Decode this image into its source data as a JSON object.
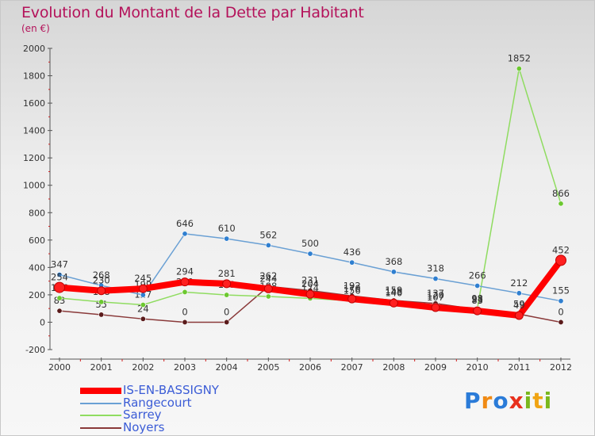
{
  "title": "Evolution du Montant de la Dette par Habitant",
  "subtitle": "(en €)",
  "logo": {
    "letters": [
      {
        "char": "P",
        "color": "#2a7bd8"
      },
      {
        "char": "r",
        "color": "#f08a14"
      },
      {
        "char": "o",
        "color": "#2a7bd8"
      },
      {
        "char": "x",
        "color": "#e8301c"
      },
      {
        "char": "i",
        "color": "#7ab81e"
      },
      {
        "char": "t",
        "color": "#f0a414"
      },
      {
        "char": "i",
        "color": "#7ab81e"
      }
    ]
  },
  "chart_data": {
    "type": "line",
    "title": "Evolution du Montant de la Dette par Habitant",
    "subtitle": "(en €)",
    "x": [
      2000,
      2001,
      2002,
      2003,
      2004,
      2005,
      2006,
      2007,
      2008,
      2009,
      2010,
      2011,
      2012
    ],
    "ylim": [
      -200,
      2000
    ],
    "yticks": [
      -200,
      0,
      200,
      400,
      600,
      800,
      1000,
      1200,
      1400,
      1600,
      1800,
      2000
    ],
    "grid": false,
    "legend_position": "bottom-left",
    "series": [
      {
        "name": "IS-EN-BASSIGNY",
        "color": "#ff0000",
        "marker_color": "#e01010",
        "width": 8,
        "values": [
          254,
          230,
          245,
          294,
          281,
          244,
          204,
          170,
          140,
          107,
          83,
          49,
          452
        ],
        "labels": [
          "254",
          "230",
          "245",
          "294",
          "281",
          "244",
          "204",
          "170",
          "140",
          "107",
          "83",
          "49",
          "452"
        ]
      },
      {
        "name": "Rangecourt",
        "color": "#6aa0d4",
        "marker_color": "#2f7fd0",
        "width": 1.5,
        "values": [
          347,
          268,
          199,
          646,
          610,
          562,
          500,
          436,
          368,
          318,
          266,
          212,
          155
        ],
        "labels": [
          "347",
          "268",
          "199",
          "646",
          "610",
          "562",
          "500",
          "436",
          "368",
          "318",
          "266",
          "212",
          "155"
        ]
      },
      {
        "name": "Sarrey",
        "color": "#8fdc60",
        "marker_color": "#6cc830",
        "width": 1.5,
        "values": [
          176,
          148,
          127,
          220,
          199,
          188,
          174,
          156,
          148,
          120,
          98,
          1852,
          866
        ],
        "labels": [
          "176",
          "148",
          "127",
          "220",
          "199",
          "188",
          "174",
          "156",
          "148",
          "120",
          "98",
          "1852",
          "866"
        ]
      },
      {
        "name": "Noyers",
        "color": "#8a3a3a",
        "marker_color": "#5a1a1a",
        "width": 1.5,
        "values": [
          83,
          55,
          24,
          0,
          0,
          262,
          231,
          192,
          159,
          137,
          93,
          59,
          0
        ],
        "labels": [
          "83",
          "55",
          "24",
          "0",
          "0",
          "262",
          "231",
          "192",
          "159",
          "137",
          "93",
          "59",
          "0"
        ]
      }
    ]
  }
}
